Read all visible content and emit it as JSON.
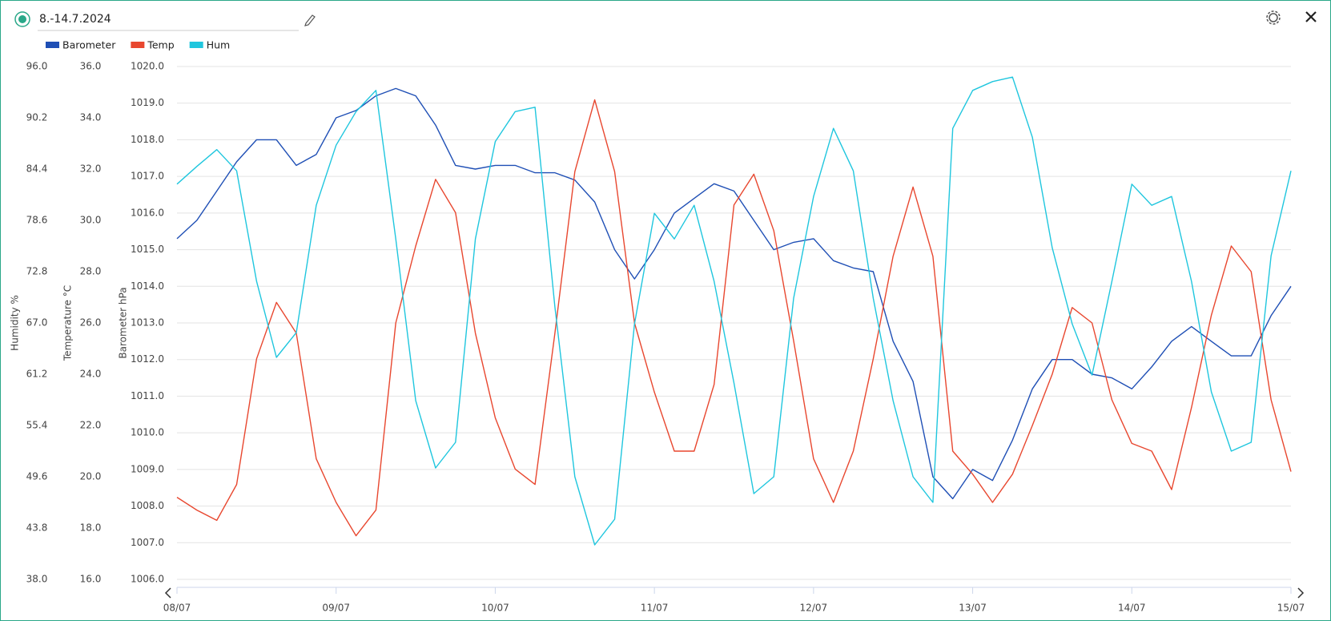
{
  "header": {
    "title": "8.-14.7.2024"
  },
  "chart_data": {
    "type": "line",
    "ylabel": "Barometer hPa",
    "y2label": "Temperature °C",
    "y3label": "Humidity %",
    "x": [
      0,
      3,
      6,
      9,
      12,
      15,
      18,
      21,
      24,
      27,
      30,
      33,
      36,
      39,
      42,
      45,
      48,
      51,
      54,
      57,
      60,
      63,
      66,
      69,
      72,
      75,
      78,
      81,
      84,
      87,
      90,
      93,
      96,
      99,
      102,
      105,
      108,
      111,
      114,
      117,
      120,
      123,
      126,
      129,
      132,
      135,
      138,
      141,
      144,
      147,
      150,
      153,
      156,
      159,
      162,
      165,
      168
    ],
    "xlim": [
      0,
      168
    ],
    "xticks": [
      {
        "value": 0,
        "label": "08/07"
      },
      {
        "value": 24,
        "label": "09/07"
      },
      {
        "value": 48,
        "label": "10/07"
      },
      {
        "value": 72,
        "label": "11/07"
      },
      {
        "value": 96,
        "label": "12/07"
      },
      {
        "value": 120,
        "label": "13/07"
      },
      {
        "value": 144,
        "label": "14/07"
      },
      {
        "value": 168,
        "label": "15/07"
      }
    ],
    "ylim": [
      1006,
      1020
    ],
    "yticks": [
      {
        "value": 1006,
        "label": "1006.0"
      },
      {
        "value": 1007,
        "label": "1007.0"
      },
      {
        "value": 1008,
        "label": "1008.0"
      },
      {
        "value": 1009,
        "label": "1009.0"
      },
      {
        "value": 1010,
        "label": "1010.0"
      },
      {
        "value": 1011,
        "label": "1011.0"
      },
      {
        "value": 1012,
        "label": "1012.0"
      },
      {
        "value": 1013,
        "label": "1013.0"
      },
      {
        "value": 1014,
        "label": "1014.0"
      },
      {
        "value": 1015,
        "label": "1015.0"
      },
      {
        "value": 1016,
        "label": "1016.0"
      },
      {
        "value": 1017,
        "label": "1017.0"
      },
      {
        "value": 1018,
        "label": "1018.0"
      },
      {
        "value": 1019,
        "label": "1019.0"
      },
      {
        "value": 1020,
        "label": "1020.0"
      }
    ],
    "y2lim": [
      16,
      36
    ],
    "y2ticks": [
      {
        "value": 16,
        "label": "16.0"
      },
      {
        "value": 18,
        "label": "18.0"
      },
      {
        "value": 20,
        "label": "20.0"
      },
      {
        "value": 22,
        "label": "22.0"
      },
      {
        "value": 24,
        "label": "24.0"
      },
      {
        "value": 26,
        "label": "26.0"
      },
      {
        "value": 28,
        "label": "28.0"
      },
      {
        "value": 30,
        "label": "30.0"
      },
      {
        "value": 32,
        "label": "32.0"
      },
      {
        "value": 34,
        "label": "34.0"
      },
      {
        "value": 36,
        "label": "36.0"
      }
    ],
    "y3lim": [
      38,
      96
    ],
    "y3ticks": [
      {
        "value": 38,
        "label": "38.0"
      },
      43.8,
      49.6,
      55.4,
      61.2,
      {
        "value": 67,
        "label": "67.0"
      },
      72.8,
      78.6,
      84.4,
      90.2,
      {
        "value": 96,
        "label": "96.0"
      }
    ],
    "grid": true,
    "series": [
      {
        "name": "Barometer",
        "color": "#1f4fb5",
        "axis": "y",
        "values": [
          1015.3,
          1015.8,
          1016.6,
          1017.4,
          1018.0,
          1018.0,
          1017.3,
          1017.6,
          1018.6,
          1018.8,
          1019.2,
          1019.4,
          1019.2,
          1018.4,
          1017.3,
          1017.2,
          1017.3,
          1017.3,
          1017.1,
          1017.1,
          1016.9,
          1016.3,
          1015.0,
          1014.2,
          1015.0,
          1016.0,
          1016.4,
          1016.8,
          1016.6,
          1015.8,
          1015.0,
          1015.2,
          1015.3,
          1014.7,
          1014.5,
          1014.4,
          1012.5,
          1011.4,
          1008.8,
          1008.2,
          1009.0,
          1008.7,
          1009.8,
          1011.2,
          1012.0,
          1012.0,
          1011.6,
          1011.5,
          1011.2,
          1011.8,
          1012.5,
          1012.9,
          1012.5,
          1012.1,
          1012.1,
          1013.2,
          1014.0
        ]
      },
      {
        "name": "Temp",
        "color": "#e8472f",
        "axis": "y2",
        "values": [
          19.2,
          18.7,
          18.3,
          19.7,
          24.6,
          26.8,
          25.6,
          20.7,
          19.0,
          17.7,
          18.7,
          26.0,
          29.0,
          31.6,
          30.3,
          25.6,
          22.3,
          20.3,
          19.7,
          25.6,
          31.9,
          34.7,
          31.9,
          26.0,
          23.3,
          21.0,
          21.0,
          23.6,
          30.6,
          31.8,
          29.6,
          25.3,
          20.7,
          19.0,
          21.0,
          24.6,
          28.6,
          31.3,
          28.6,
          21.0,
          20.1,
          19.0,
          20.1,
          22.0,
          24.0,
          26.6,
          26.0,
          23.0,
          21.3,
          21.0,
          19.5,
          22.7,
          26.3,
          29.0,
          28.0,
          23.0,
          20.2
        ]
      },
      {
        "name": "Hum",
        "color": "#1fc6de",
        "axis": "y3",
        "values": [
          82.7,
          84.7,
          86.6,
          84.2,
          71.7,
          63.1,
          65.9,
          80.3,
          87.1,
          90.9,
          93.3,
          76.5,
          58.2,
          50.6,
          53.5,
          76.5,
          87.5,
          90.9,
          91.4,
          68.8,
          49.6,
          41.9,
          44.8,
          66.9,
          79.4,
          76.5,
          80.3,
          71.7,
          60.2,
          47.7,
          49.6,
          69.8,
          81.3,
          89.0,
          84.2,
          69.8,
          58.2,
          49.6,
          46.7,
          89.0,
          93.3,
          94.3,
          94.8,
          88.0,
          75.5,
          66.9,
          61.1,
          71.7,
          82.7,
          80.3,
          81.3,
          71.7,
          59.2,
          52.5,
          53.5,
          74.6,
          84.2
        ]
      }
    ]
  }
}
